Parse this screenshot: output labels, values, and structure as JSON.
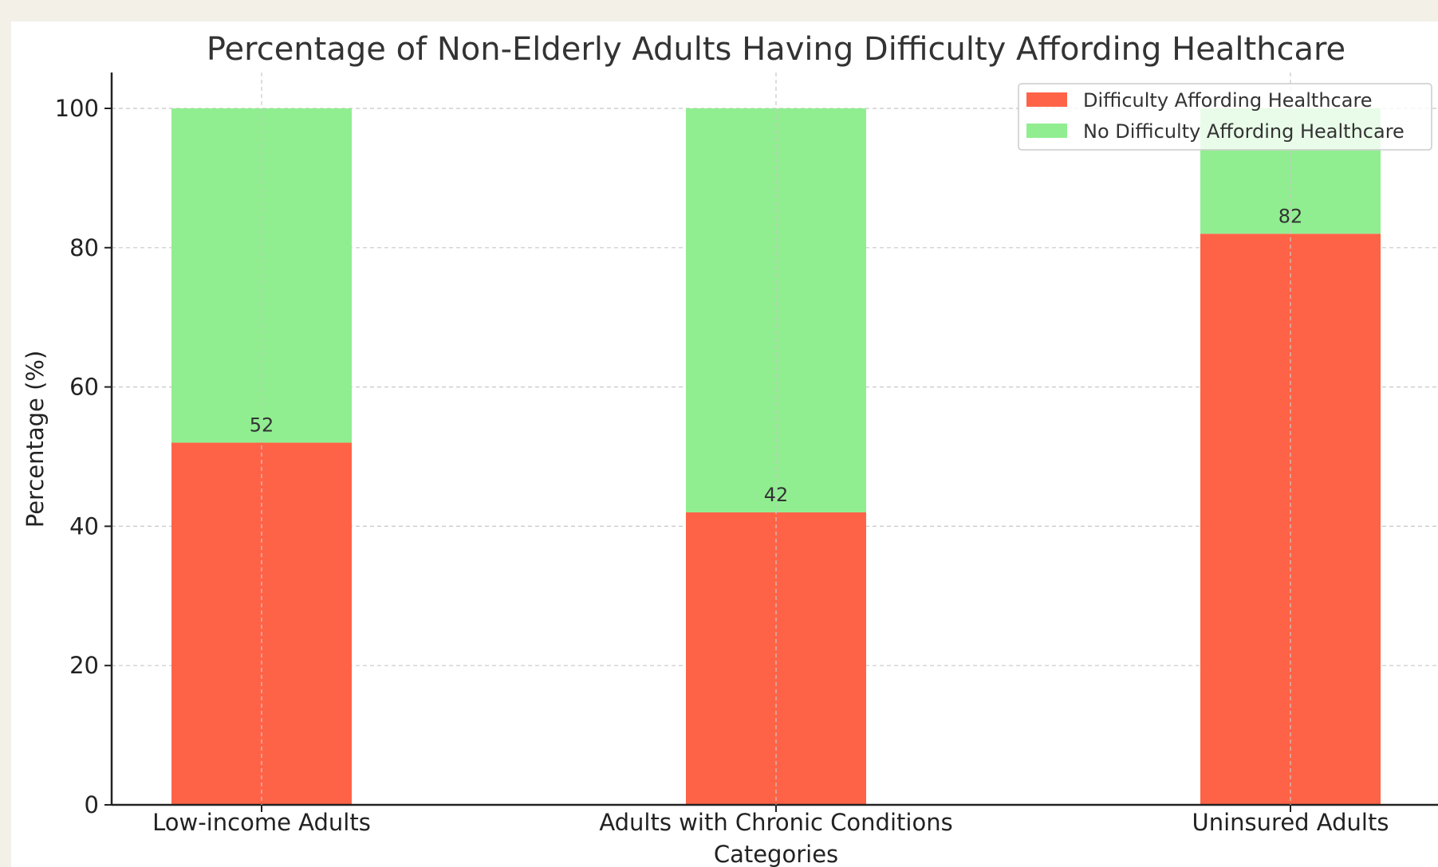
{
  "chart_data": {
    "type": "bar",
    "stacked": true,
    "title": "Percentage of Non-Elderly Adults Having Difficulty Affording Healthcare",
    "xlabel": "Categories",
    "ylabel": "Percentage (%)",
    "categories": [
      "Low-income Adults",
      "Adults with Chronic Conditions",
      "Uninsured Adults"
    ],
    "series": [
      {
        "name": "Difficulty Affording Healthcare",
        "values": [
          52,
          42,
          82
        ],
        "color": "#ff6347"
      },
      {
        "name": "No Difficulty Affording Healthcare",
        "values": [
          48,
          58,
          18
        ],
        "color": "#90ee90"
      }
    ],
    "data_labels": [
      "52",
      "42",
      "82"
    ],
    "ylim": [
      0,
      105
    ],
    "yticks": [
      0,
      20,
      40,
      60,
      80,
      100
    ],
    "grid": true,
    "legend_position": "top-right"
  }
}
